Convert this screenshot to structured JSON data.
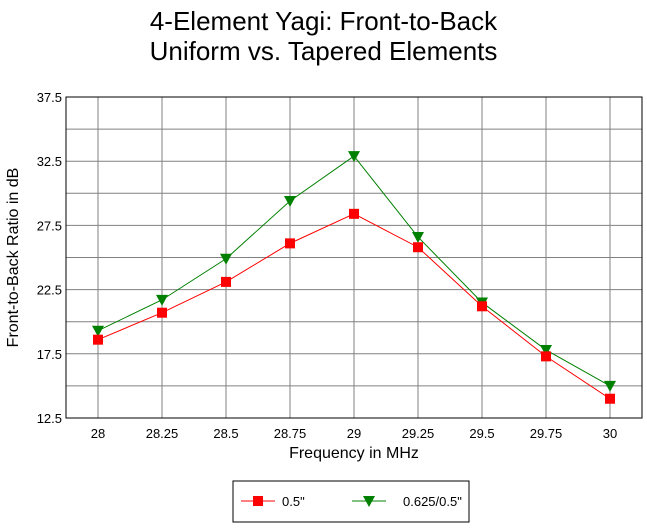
{
  "chart_data": {
    "type": "line",
    "title": [
      "4-Element Yagi:  Front-to-Back",
      "Uniform vs. Tapered Elements"
    ],
    "xlabel": "Frequency in MHz",
    "ylabel": "Front-to-Back Ratio in dB",
    "categories": [
      "28",
      "28.25",
      "28.5",
      "28.75",
      "29",
      "29.25",
      "29.5",
      "29.75",
      "30"
    ],
    "yticks": [
      "12.5",
      "17.5",
      "22.5",
      "27.5",
      "32.5",
      "37.5"
    ],
    "ylim": [
      12.5,
      37.5
    ],
    "grid": true,
    "legend_position": "bottom-center",
    "series": [
      {
        "name": "0.5\"",
        "color": "#ff0000",
        "marker": "square",
        "values": [
          18.6,
          20.7,
          23.1,
          26.1,
          28.4,
          25.8,
          21.2,
          17.3,
          14.0
        ]
      },
      {
        "name": "0.625/0.5\"",
        "color": "#008000",
        "marker": "triangle-down",
        "values": [
          19.3,
          21.7,
          24.9,
          29.4,
          32.9,
          26.6,
          21.5,
          17.8,
          15.0
        ]
      }
    ]
  }
}
